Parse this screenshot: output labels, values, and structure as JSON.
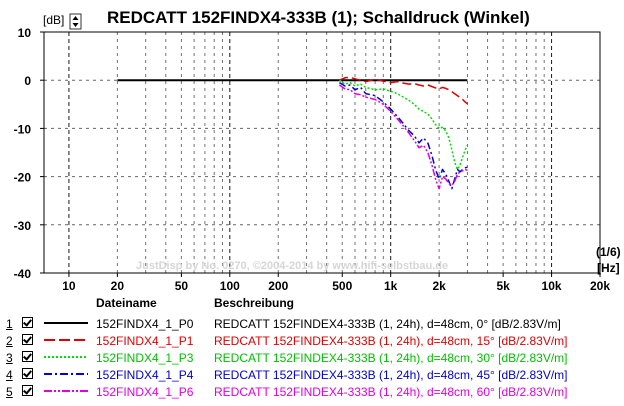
{
  "chart_data": {
    "type": "line",
    "title": "REDCATT 152FINDX4-333B (1); Schalldruck (Winkel)",
    "ylabel_unit": "[dB]",
    "xlabel_unit": "[Hz]",
    "smoothing": "(1/6)",
    "watermark": "JustDisp by No. 0270, ©2004-2014 by www.hifi-selbstbau.de",
    "x_scale": "log",
    "xlim": [
      7,
      20000
    ],
    "ylim": [
      -40,
      10
    ],
    "x_ticks": [
      10,
      20,
      50,
      100,
      200,
      500,
      1000,
      2000,
      5000,
      10000,
      20000
    ],
    "x_tick_labels": [
      "10",
      "20",
      "50",
      "100",
      "200",
      "500",
      "1k",
      "2k",
      "5k",
      "10k",
      "20k"
    ],
    "y_ticks": [
      10,
      0,
      -10,
      -20,
      -30,
      -40
    ],
    "y_tick_labels": [
      "10",
      "0",
      "-10",
      "-20",
      "-30",
      "-40"
    ],
    "grid": true,
    "series": [
      {
        "name": "152FINDX4_1_P0",
        "color": "#000000",
        "dash": "solid",
        "x": [
          20,
          100,
          500,
          1000,
          2000,
          3000
        ],
        "y": [
          0,
          0,
          0,
          0,
          0,
          0
        ]
      },
      {
        "name": "152FINDX4_1_P1",
        "color": "#e00000",
        "dash": "longdash",
        "x": [
          480,
          520,
          560,
          600,
          650,
          700,
          800,
          900,
          1000,
          1100,
          1200,
          1300,
          1400,
          1500,
          1600,
          1700,
          1800,
          1900,
          2000,
          2100,
          2200,
          2300,
          2400,
          2500,
          2600,
          2700,
          2800,
          2900,
          3000
        ],
        "y": [
          0.0,
          0.5,
          0.6,
          0.3,
          0.0,
          -0.3,
          0.2,
          -0.2,
          -0.5,
          -0.3,
          -0.6,
          -0.8,
          -0.7,
          -1.0,
          -1.2,
          -1.0,
          -1.3,
          -1.6,
          -1.8,
          -1.5,
          -1.7,
          -2.0,
          -2.4,
          -2.8,
          -3.2,
          -3.6,
          -4.0,
          -4.5,
          -4.9
        ]
      },
      {
        "name": "152FINDX4_1_P3",
        "color": "#00dd00",
        "dash": "dotted",
        "x": [
          480,
          520,
          560,
          600,
          650,
          700,
          800,
          900,
          1000,
          1100,
          1200,
          1300,
          1400,
          1500,
          1600,
          1700,
          1800,
          1900,
          2000,
          2100,
          2200,
          2300,
          2400,
          2500,
          2600,
          2700,
          2800,
          2900,
          3000
        ],
        "y": [
          0.0,
          -0.8,
          -0.5,
          -1.2,
          -0.8,
          -1.5,
          -2.0,
          -1.8,
          -2.3,
          -2.8,
          -3.5,
          -4.2,
          -5.0,
          -6.0,
          -6.5,
          -7.0,
          -8.0,
          -9.2,
          -10.0,
          -9.8,
          -10.5,
          -12.0,
          -14.5,
          -17.0,
          -18.5,
          -17.5,
          -16.0,
          -14.5,
          -13.5
        ]
      },
      {
        "name": "152FINDX4_1_P4",
        "color": "#0000d0",
        "dash": "dashdot",
        "x": [
          480,
          520,
          560,
          600,
          650,
          700,
          800,
          900,
          1000,
          1100,
          1200,
          1300,
          1400,
          1500,
          1600,
          1700,
          1800,
          1900,
          2000,
          2100,
          2200,
          2300,
          2400,
          2500,
          2600,
          2700,
          2800,
          2900,
          3000
        ],
        "y": [
          -0.5,
          -1.2,
          -1.0,
          -2.0,
          -1.5,
          -2.8,
          -3.2,
          -4.5,
          -6.0,
          -7.5,
          -9.0,
          -10.5,
          -11.5,
          -13.0,
          -12.0,
          -13.0,
          -15.5,
          -18.5,
          -20.5,
          -18.5,
          -19.5,
          -21.0,
          -22.5,
          -20.5,
          -18.5,
          -19.0,
          -18.5,
          -18.2,
          -18.0
        ]
      },
      {
        "name": "152FINDX4_1_P6",
        "color": "#e000e0",
        "dash": "dashdotdot",
        "x": [
          480,
          520,
          560,
          600,
          650,
          700,
          800,
          900,
          1000,
          1100,
          1200,
          1300,
          1400,
          1500,
          1600,
          1700,
          1800,
          1900,
          2000,
          2100,
          2200,
          2300,
          2400,
          2500,
          2600,
          2700,
          2800,
          2900,
          3000
        ],
        "y": [
          -1.0,
          -1.8,
          -2.0,
          -2.8,
          -3.0,
          -3.5,
          -4.0,
          -5.0,
          -6.5,
          -8.0,
          -9.5,
          -11.0,
          -12.5,
          -14.0,
          -13.5,
          -15.0,
          -17.5,
          -20.5,
          -22.5,
          -20.0,
          -20.5,
          -21.5,
          -21.8,
          -21.0,
          -19.5,
          -19.0,
          -18.8,
          -18.5,
          -18.7
        ]
      }
    ]
  },
  "legend": {
    "col_file": "Dateiname",
    "col_desc": "Beschreibung",
    "rows": [
      {
        "num": "1",
        "file": "152FINDX4_1_P0",
        "desc": "REDCATT 152FINDEX4-333B (1, 24h), d=48cm, 0° [dB/2.83V/m]",
        "color": "#000000"
      },
      {
        "num": "2",
        "file": "152FINDX4_1_P1",
        "desc": "REDCATT 152FINDEX4-333B (1, 24h), d=48cm, 15° [dB/2.83V/m]",
        "color": "#e00000"
      },
      {
        "num": "3",
        "file": "152FINDX4_1_P3",
        "desc": "REDCATT 152FINDEX4-333B (1, 24h), d=48cm, 30° [dB/2.83V/m]",
        "color": "#00dd00"
      },
      {
        "num": "4",
        "file": "152FINDX4_1_P4",
        "desc": "REDCATT 152FINDEX4-333B (1, 24h), d=48cm, 45° [dB/2.83V/m]",
        "color": "#0000d0"
      },
      {
        "num": "5",
        "file": "152FINDX4_1_P6",
        "desc": "REDCATT 152FINDEX4-333B (1, 24h), d=48cm, 60° [dB/2.83V/m]",
        "color": "#e000e0"
      }
    ]
  }
}
